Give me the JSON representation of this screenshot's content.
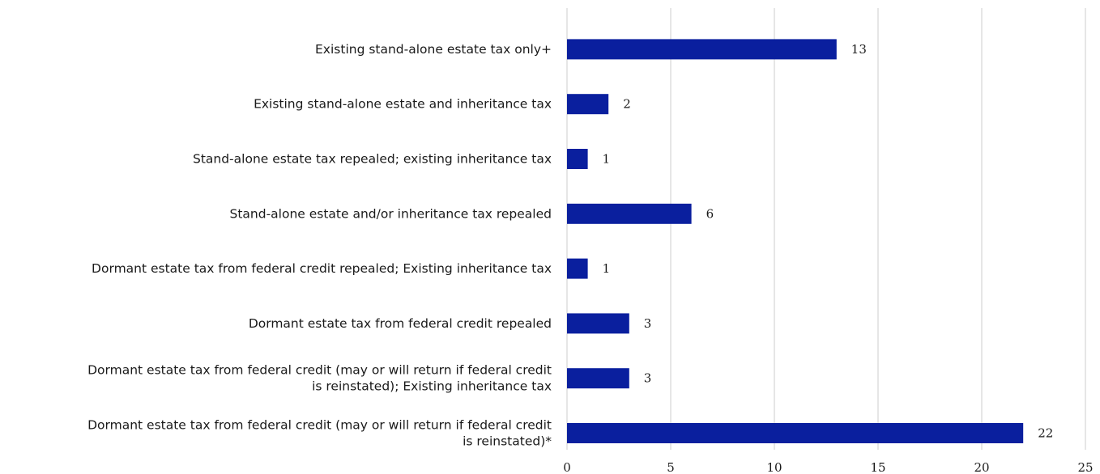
{
  "chart_data": {
    "type": "bar",
    "orientation": "horizontal",
    "title": "",
    "xlabel": "",
    "ylabel": "",
    "categories": [
      [
        "Existing stand-alone estate tax only+"
      ],
      [
        "Existing stand-alone estate and inheritance tax"
      ],
      [
        "Stand-alone estate tax repealed; existing inheritance tax"
      ],
      [
        "Stand-alone estate and/or inheritance tax repealed"
      ],
      [
        "Dormant estate tax from federal credit repealed; Existing inheritance tax"
      ],
      [
        "Dormant estate tax from federal credit repealed"
      ],
      [
        "Dormant estate tax from federal credit (may or will return if federal credit",
        "is reinstated); Existing inheritance tax"
      ],
      [
        "Dormant estate tax from federal credit (may or will return if federal credit",
        "is reinstated)*"
      ]
    ],
    "values": [
      13,
      2,
      1,
      6,
      1,
      3,
      3,
      22
    ],
    "xlim": [
      0,
      25
    ],
    "xticks": [
      "0",
      "5",
      "10",
      "15",
      "20",
      "25"
    ],
    "grid": true,
    "legend": "none",
    "bar_color": "#0a1f9e"
  }
}
